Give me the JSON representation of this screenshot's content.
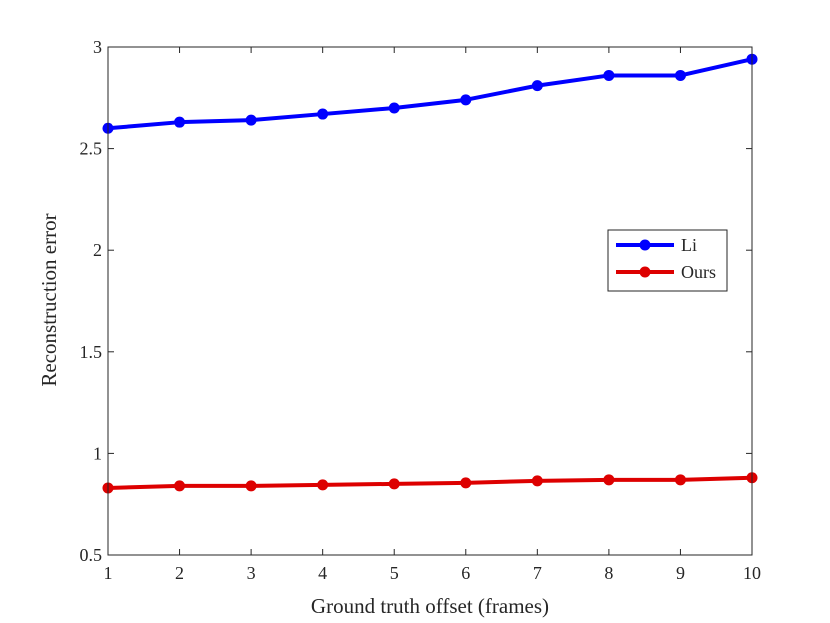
{
  "chart_data": {
    "type": "line",
    "title": "",
    "xlabel": "Ground truth offset (frames)",
    "ylabel": "Reconstruction error",
    "xlim": [
      1,
      10
    ],
    "ylim": [
      0.5,
      3
    ],
    "x": [
      1,
      2,
      3,
      4,
      5,
      6,
      7,
      8,
      9,
      10
    ],
    "xticks": [
      1,
      2,
      3,
      4,
      5,
      6,
      7,
      8,
      9,
      10
    ],
    "yticks": [
      0.5,
      1,
      1.5,
      2,
      2.5,
      3
    ],
    "ytick_labels": [
      "0.5",
      "1",
      "1.5",
      "2",
      "2.5",
      "3"
    ],
    "grid": false,
    "legend_position": "right-center",
    "series": [
      {
        "name": "Li",
        "color": "#0000ff",
        "values": [
          2.6,
          2.63,
          2.64,
          2.67,
          2.7,
          2.74,
          2.81,
          2.86,
          2.86,
          2.94
        ]
      },
      {
        "name": "Ours",
        "color": "#dd0000",
        "values": [
          0.83,
          0.84,
          0.84,
          0.845,
          0.85,
          0.855,
          0.865,
          0.87,
          0.87,
          0.88
        ]
      }
    ]
  }
}
